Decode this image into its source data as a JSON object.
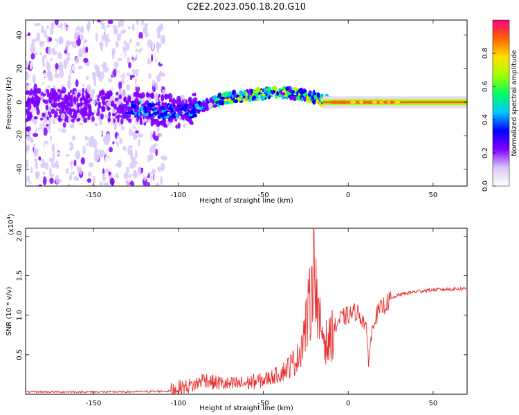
{
  "title": "C2E2.2023.050.18.20.G10",
  "chart_data": [
    {
      "type": "heatmap",
      "xlabel": "Height of straight line (km)",
      "ylabel": "Frequency (Hz)",
      "xlim": [
        -190,
        70
      ],
      "ylim": [
        -50,
        49
      ],
      "xticks": [
        -150,
        -100,
        -50,
        0,
        50
      ],
      "yticks": [
        -40,
        -20,
        0,
        20,
        40
      ],
      "colorbar": {
        "label": "Normalized spectral amplitude",
        "range": [
          0,
          1
        ],
        "ticks": [
          "0.0",
          "0.2",
          "0.4",
          "0.6",
          "0.8"
        ],
        "colormap": [
          "#ffffff",
          "#d8c8f8",
          "#8000ff",
          "#0000ff",
          "#00c8ff",
          "#00ff60",
          "#a0ff00",
          "#ffe000",
          "#ff6000",
          "#ff0080"
        ]
      },
      "ridge": {
        "x": [
          -140,
          -130,
          -120,
          -110,
          -100,
          -90,
          -80,
          -70,
          -60,
          -50,
          -40,
          -30,
          -20,
          -15,
          -10,
          0,
          10,
          20,
          30,
          40,
          50,
          60,
          70
        ],
        "freq": [
          -2,
          -3,
          -4,
          -5,
          -6,
          -4,
          0,
          3,
          4,
          5,
          6,
          5,
          3,
          1,
          0,
          0,
          0,
          0,
          0,
          0,
          0,
          0,
          0
        ]
      },
      "grid": false
    },
    {
      "type": "line",
      "xlabel": "Height of straight line (km)",
      "ylabel": "SNR (10 * v/v)",
      "yscale_label": "(x10",
      "yscale_exp": "4",
      "xlim": [
        -190,
        70
      ],
      "ylim": [
        0,
        2.1
      ],
      "xticks": [
        -150,
        -100,
        -50,
        0,
        50
      ],
      "yticks": [
        "0.5",
        "1.0",
        "1.5",
        "2.0"
      ],
      "series": [
        {
          "color": "#e83030",
          "x": [
            -190,
            -160,
            -130,
            -105,
            -100,
            -90,
            -85,
            -80,
            -75,
            -70,
            -65,
            -60,
            -55,
            -50,
            -45,
            -40,
            -35,
            -30,
            -25,
            -22,
            -20,
            -18,
            -15,
            -12,
            -10,
            -5,
            0,
            5,
            10,
            12,
            15,
            20,
            25,
            30,
            40,
            50,
            60,
            70
          ],
          "values": [
            0.03,
            0.03,
            0.03,
            0.04,
            0.08,
            0.12,
            0.2,
            0.15,
            0.14,
            0.12,
            0.13,
            0.14,
            0.16,
            0.18,
            0.22,
            0.26,
            0.35,
            0.45,
            0.85,
            1.2,
            2.08,
            0.9,
            0.8,
            0.6,
            0.75,
            0.95,
            1.0,
            1.05,
            0.9,
            0.45,
            0.95,
            1.1,
            1.2,
            1.26,
            1.3,
            1.32,
            1.33,
            1.34
          ]
        }
      ],
      "grid": false
    }
  ]
}
